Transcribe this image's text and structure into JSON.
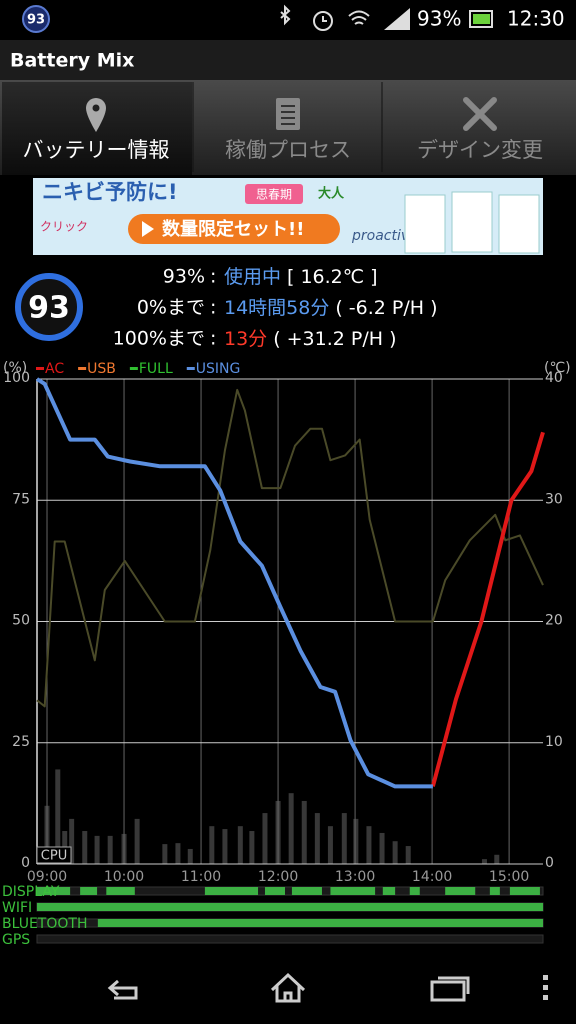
{
  "status_bar": {
    "badge": "93",
    "battery": "93%",
    "time": "12:30"
  },
  "app_title": "Battery Mix",
  "tabs": [
    "バッテリー情報",
    "稼働プロセス",
    "デザイン変更"
  ],
  "ad": {
    "headline": "ニキビ予防に!",
    "tag1": "思春期",
    "tag2": "大人",
    "click": "クリック",
    "button": "数量限定セット!!",
    "brand": "proactiv"
  },
  "summary": {
    "level": "93",
    "rows": [
      [
        "93%",
        ":",
        "使用中",
        "[ 16.2℃ ]"
      ],
      [
        "0%まで",
        ":",
        "14時間58分",
        "( -6.2 P/H )"
      ],
      [
        "100%まで",
        ":",
        "13分",
        "( +31.2 P/H )"
      ]
    ]
  },
  "chart_data": {
    "type": "line",
    "y_label": "(%)",
    "y2_label": "(℃)",
    "xlim": [
      8.87,
      15.44
    ],
    "xticks": [
      {
        "value": 9,
        "label": "09:00"
      },
      {
        "value": 10,
        "label": "10:00"
      },
      {
        "value": 11,
        "label": "11:00"
      },
      {
        "value": 12,
        "label": "12:00"
      },
      {
        "value": 13,
        "label": "13:00"
      },
      {
        "value": 14,
        "label": "14:00"
      },
      {
        "value": 15,
        "label": "15:00"
      }
    ],
    "ylim": [
      0,
      100
    ],
    "yticks": [
      0,
      25,
      50,
      75,
      100
    ],
    "y2lim": [
      0,
      40
    ],
    "y2ticks": [
      0,
      10,
      20,
      30,
      40
    ],
    "grid": true,
    "series": [
      {
        "name": "AC",
        "color": "#e01818",
        "x": [
          14.01,
          14.31,
          14.64,
          15.03,
          15.29,
          15.44
        ],
        "values": [
          16,
          34,
          50,
          75,
          81,
          89
        ]
      },
      {
        "name": "USB",
        "color": "#f07830",
        "x": [],
        "values": []
      },
      {
        "name": "FULL",
        "color": "#30c030",
        "x": [],
        "values": []
      },
      {
        "name": "USING",
        "color": "#5b8fe0",
        "x": [
          8.87,
          8.97,
          9.3,
          9.62,
          9.79,
          10.08,
          10.47,
          11.05,
          11.25,
          11.51,
          11.79,
          12.03,
          12.29,
          12.55,
          12.74,
          12.94,
          13.17,
          13.52,
          14.01
        ],
        "values": [
          100,
          99,
          87.5,
          87.5,
          84,
          83,
          82,
          82,
          77,
          66.5,
          61.5,
          53,
          44,
          36.5,
          35.5,
          25.5,
          18.5,
          16,
          16
        ]
      },
      {
        "axis": "y2",
        "color": "#4a4a28",
        "x": [
          8.87,
          8.97,
          9.1,
          9.23,
          9.62,
          9.75,
          10.01,
          10.53,
          10.92,
          11.12,
          11.31,
          11.47,
          11.57,
          11.79,
          12.03,
          12.22,
          12.42,
          12.57,
          12.68,
          12.87,
          13.06,
          13.19,
          13.52,
          14.01,
          14.17,
          14.49,
          14.82,
          14.95,
          15.14,
          15.44
        ],
        "values": [
          13.5,
          13,
          26.6,
          26.6,
          16.8,
          22.6,
          25,
          20,
          20,
          25.9,
          34.1,
          39.1,
          37.4,
          31,
          31,
          34.5,
          35.9,
          35.9,
          33.3,
          33.7,
          35,
          28.4,
          20,
          20,
          23.4,
          26.7,
          28.8,
          26.7,
          27.1,
          23
        ]
      }
    ],
    "cpu": {
      "label": "CPU",
      "color": "#383838",
      "x": [
        9.0,
        9.14,
        9.23,
        9.32,
        9.49,
        9.65,
        9.82,
        10.0,
        10.17,
        10.53,
        10.7,
        10.86,
        11.14,
        11.31,
        11.51,
        11.66,
        11.83,
        12.0,
        12.17,
        12.34,
        12.51,
        12.68,
        12.86,
        13.01,
        13.18,
        13.35,
        13.52,
        13.69,
        14.68,
        14.84
      ],
      "values": [
        12,
        19.5,
        6.8,
        9.3,
        6.8,
        5.8,
        5.8,
        6.2,
        9.3,
        4.1,
        4.3,
        3.1,
        7.8,
        7.2,
        7.8,
        6.8,
        10.5,
        13,
        14.6,
        13,
        10.5,
        7.8,
        10.5,
        9.3,
        7.8,
        6.4,
        4.7,
        3.7,
        1,
        1.9
      ]
    },
    "timeline": [
      {
        "name": "DISPLAY",
        "segments": [
          [
            8.87,
            9.3
          ],
          [
            9.43,
            9.65
          ],
          [
            9.77,
            10.14
          ],
          [
            11.05,
            11.74
          ],
          [
            11.83,
            12.09
          ],
          [
            12.18,
            12.57
          ],
          [
            12.68,
            13.26
          ],
          [
            13.36,
            13.52
          ],
          [
            13.71,
            13.84
          ],
          [
            14.17,
            14.56
          ],
          [
            14.75,
            14.88
          ],
          [
            15.01,
            15.4
          ]
        ]
      },
      {
        "name": "WIFI",
        "segments": [
          [
            8.87,
            15.44
          ]
        ]
      },
      {
        "name": "BLUETOOTH",
        "segments": [
          [
            9.66,
            15.44
          ]
        ]
      },
      {
        "name": "GPS",
        "segments": []
      }
    ]
  }
}
